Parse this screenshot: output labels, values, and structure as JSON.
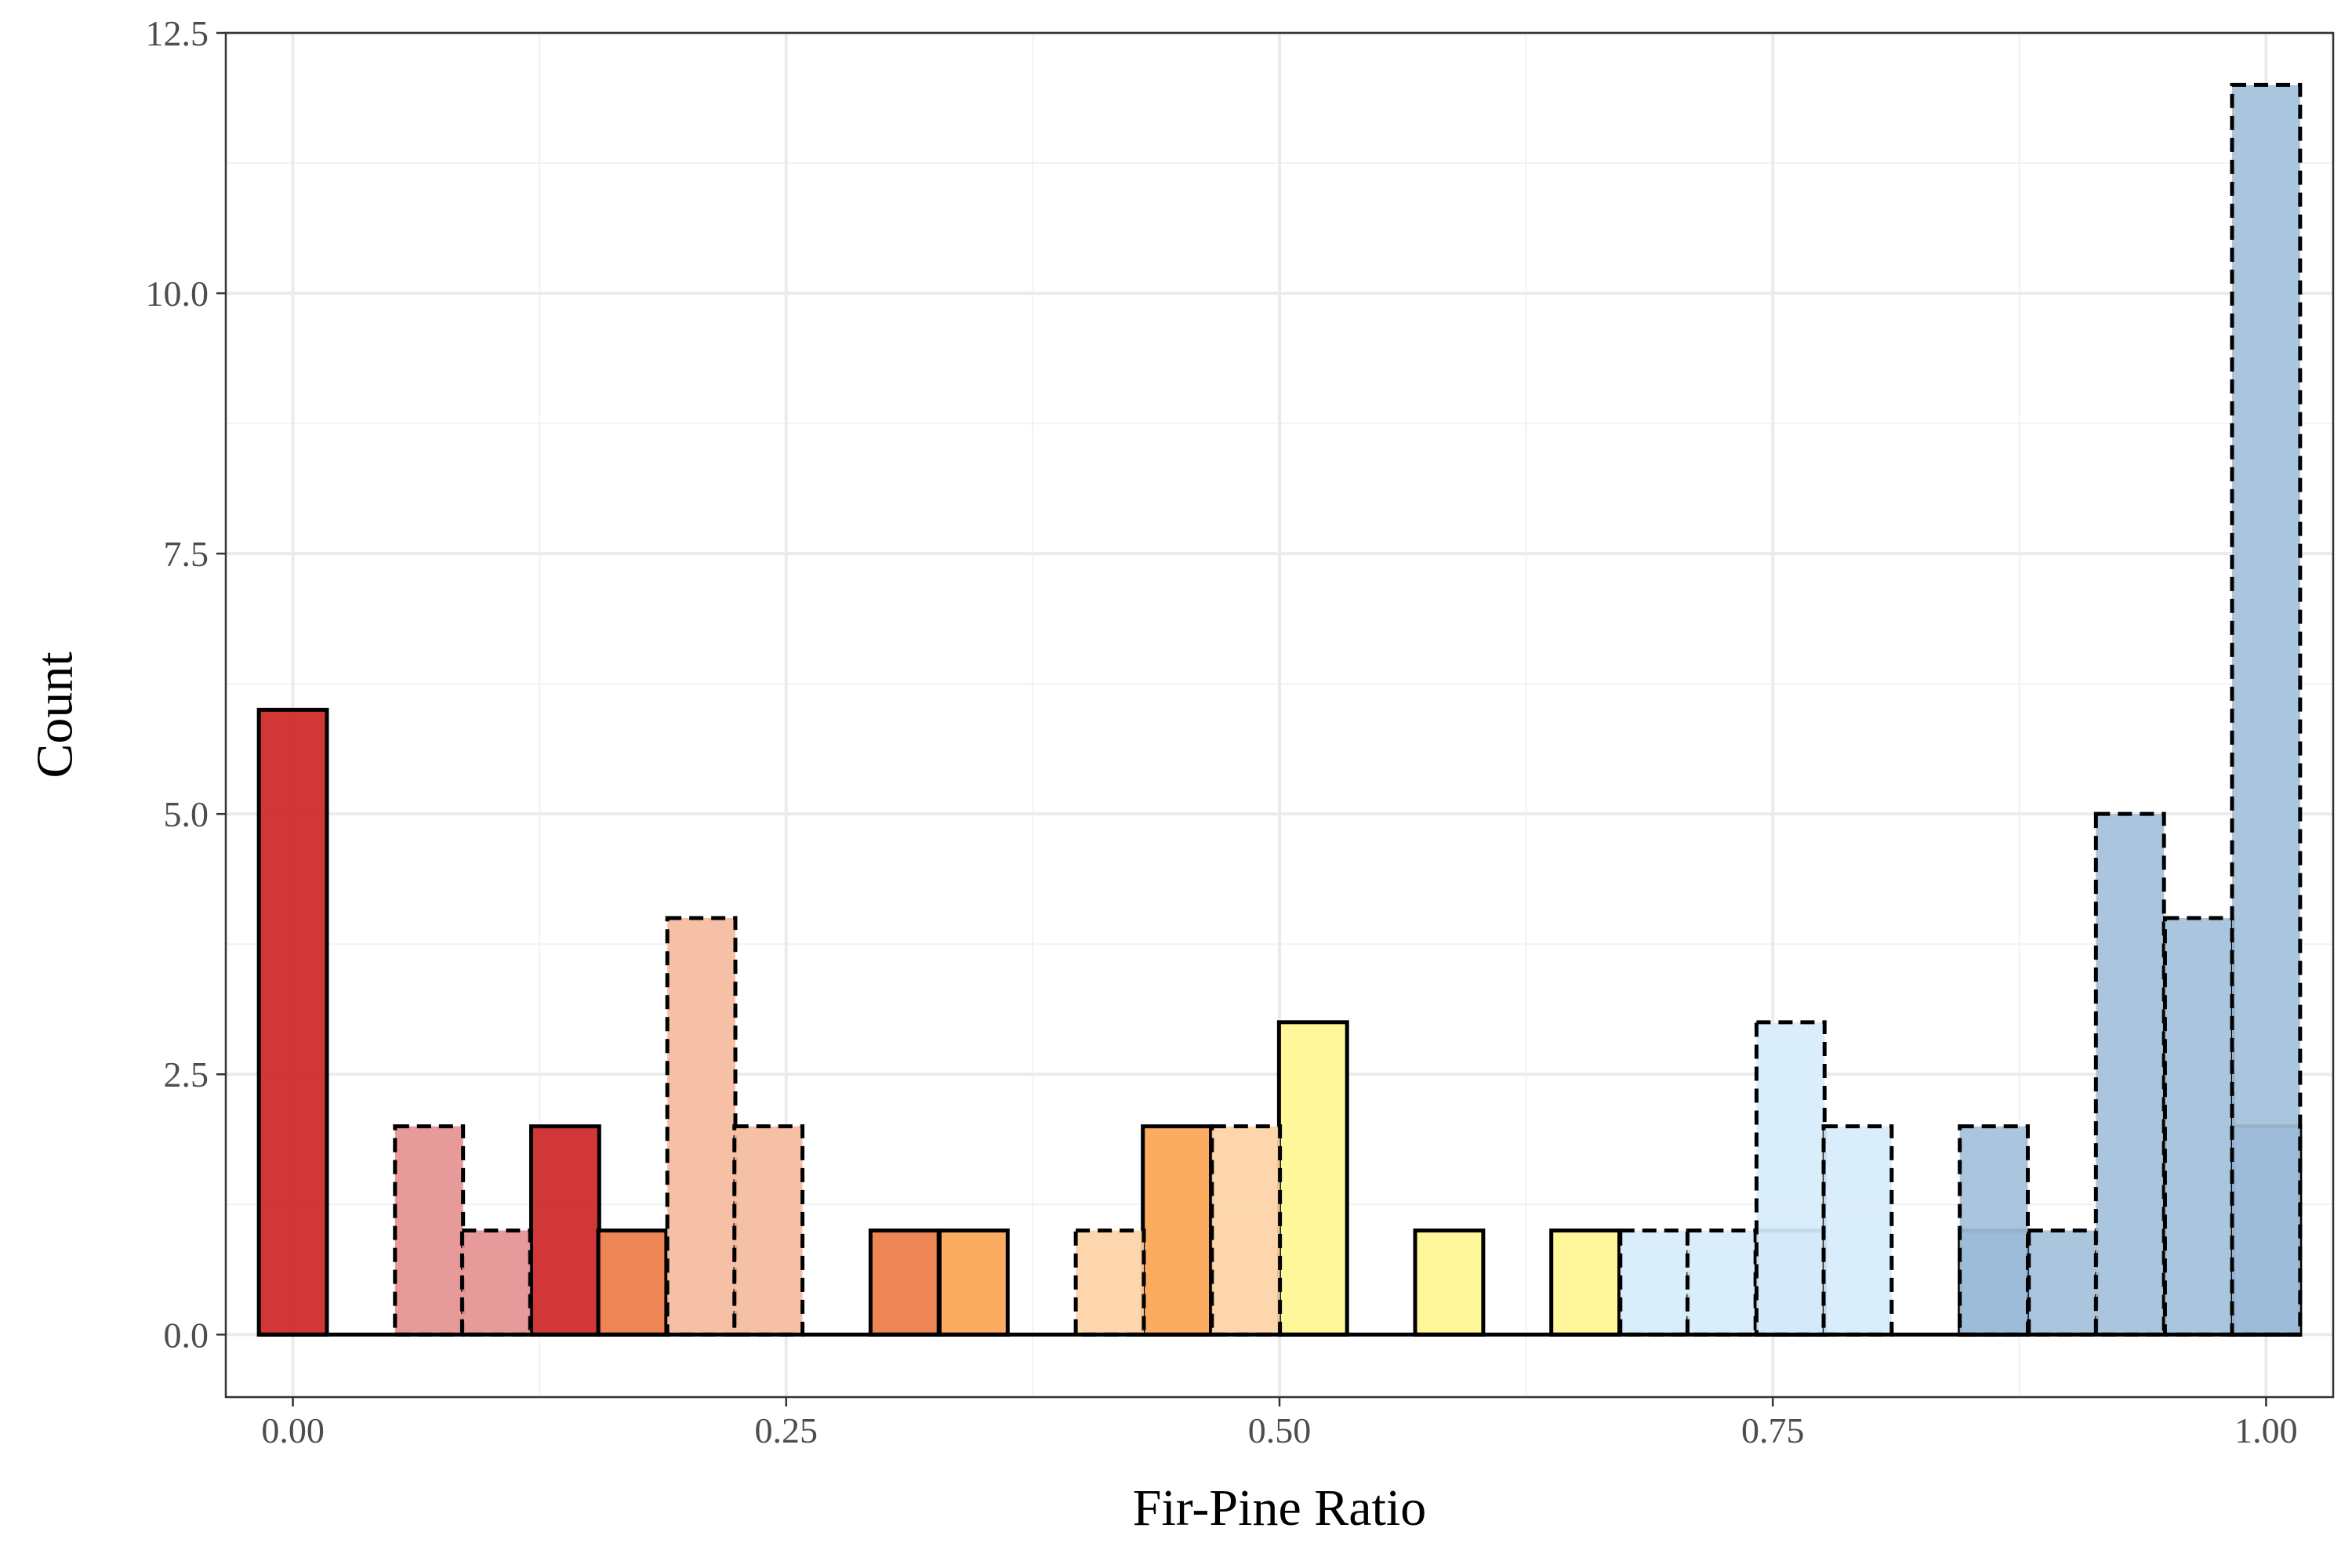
{
  "chart_data": {
    "type": "bar",
    "subtype": "overlaid-histogram",
    "title": "",
    "xlabel": "Fir-Pine Ratio",
    "ylabel": "Count",
    "xlim": [
      -0.034,
      1.034
    ],
    "ylim": [
      -0.6,
      12.5
    ],
    "x_ticks": [
      {
        "value": 0.0,
        "label": "0.00"
      },
      {
        "value": 0.25,
        "label": "0.25"
      },
      {
        "value": 0.5,
        "label": "0.50"
      },
      {
        "value": 0.75,
        "label": "0.75"
      },
      {
        "value": 1.0,
        "label": "1.00"
      }
    ],
    "y_ticks": [
      {
        "value": 0,
        "label": "0.0"
      },
      {
        "value": 2.5,
        "label": "2.5"
      },
      {
        "value": 5,
        "label": "5.0"
      },
      {
        "value": 7.5,
        "label": "7.5"
      },
      {
        "value": 10,
        "label": "10.0"
      },
      {
        "value": 12.5,
        "label": "12.5"
      }
    ],
    "grid": true,
    "legend": "none",
    "bin_width": 0.0345,
    "baseline": {
      "x_start": -0.0172,
      "x_end": 1.0172
    },
    "series": [
      {
        "line_style": "solid",
        "bins": [
          {
            "x": 0.0,
            "count": 6,
            "color": "#cd2626"
          },
          {
            "x": 0.138,
            "count": 2,
            "color": "#cd2626"
          },
          {
            "x": 0.172,
            "count": 1,
            "color": "#ec7b45"
          },
          {
            "x": 0.31,
            "count": 1,
            "color": "#ec7b45"
          },
          {
            "x": 0.345,
            "count": 1,
            "color": "#fca552"
          },
          {
            "x": 0.448,
            "count": 2,
            "color": "#fca552"
          },
          {
            "x": 0.517,
            "count": 3,
            "color": "#fff691"
          },
          {
            "x": 0.586,
            "count": 1,
            "color": "#fff691"
          },
          {
            "x": 0.655,
            "count": 1,
            "color": "#fff691"
          },
          {
            "x": 0.759,
            "count": 1,
            "color": "#add8ff"
          },
          {
            "x": 0.862,
            "count": 1,
            "color": "#4682b4"
          },
          {
            "x": 1.0,
            "count": 2,
            "color": "#4682b4"
          }
        ]
      },
      {
        "line_style": "dashed",
        "bins": [
          {
            "x": 0.069,
            "count": 2,
            "color": "#e59191"
          },
          {
            "x": 0.103,
            "count": 1,
            "color": "#e59191"
          },
          {
            "x": 0.207,
            "count": 4,
            "color": "#f5bba0"
          },
          {
            "x": 0.241,
            "count": 2,
            "color": "#f5bba0"
          },
          {
            "x": 0.414,
            "count": 1,
            "color": "#fdd3a6"
          },
          {
            "x": 0.483,
            "count": 2,
            "color": "#fdd3a6"
          },
          {
            "x": 0.69,
            "count": 1,
            "color": "#d7ecfb"
          },
          {
            "x": 0.724,
            "count": 1,
            "color": "#d7ecfb"
          },
          {
            "x": 0.759,
            "count": 3,
            "color": "#d7ecfb"
          },
          {
            "x": 0.793,
            "count": 2,
            "color": "#d7ecfb"
          },
          {
            "x": 0.862,
            "count": 2,
            "color": "#a3c0db"
          },
          {
            "x": 0.897,
            "count": 1,
            "color": "#a3c0db"
          },
          {
            "x": 0.931,
            "count": 5,
            "color": "#a3c0db"
          },
          {
            "x": 0.966,
            "count": 4,
            "color": "#a3c0db"
          },
          {
            "x": 1.0,
            "count": 12,
            "color": "#a3c0db"
          }
        ]
      }
    ]
  }
}
